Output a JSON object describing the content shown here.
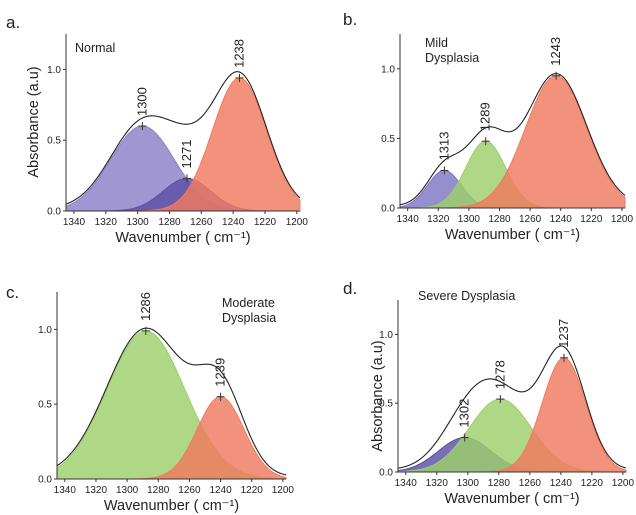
{
  "chart_data": [
    {
      "type": "area",
      "panel_label": "a.",
      "annotation": [
        "Normal"
      ],
      "xlabel": "Wavenumber ( cm⁻¹)",
      "ylabel": "Absorbance (a.u)",
      "xlim": [
        1345,
        1198
      ],
      "ylim": [
        0,
        1.25
      ],
      "x_ticks": [
        1340,
        1320,
        1300,
        1280,
        1260,
        1240,
        1220,
        1200
      ],
      "y_ticks": [
        0.0,
        0.5,
        1.0
      ],
      "series": [
        {
          "peak_label": "1300",
          "center": 1297,
          "amplitude": 0.6,
          "sigma": 20,
          "color": "#8b80c8"
        },
        {
          "peak_label": "1271",
          "center": 1269,
          "amplitude": 0.23,
          "sigma": 15,
          "color": "#5b4fa5"
        },
        {
          "peak_label": "1238",
          "center": 1236,
          "amplitude": 0.94,
          "sigma": 17,
          "color": "#f07a5f"
        }
      ]
    },
    {
      "type": "area",
      "panel_label": "b.",
      "annotation": [
        "Mild",
        "Dysplasia"
      ],
      "xlabel": "Wavenumber ( cm⁻¹)",
      "ylabel": "",
      "xlim": [
        1345,
        1198
      ],
      "ylim": [
        0,
        1.25
      ],
      "x_ticks": [
        1340,
        1320,
        1300,
        1280,
        1260,
        1240,
        1220,
        1200
      ],
      "y_ticks": [
        0.0,
        0.5,
        1.0
      ],
      "series": [
        {
          "peak_label": "1313",
          "center": 1316,
          "amplitude": 0.27,
          "sigma": 11,
          "color": "#7e76c2"
        },
        {
          "peak_label": "1289",
          "center": 1289,
          "amplitude": 0.48,
          "sigma": 13,
          "color": "#9ccf6a"
        },
        {
          "peak_label": "1243",
          "center": 1243,
          "amplitude": 0.95,
          "sigma": 20,
          "color": "#f07a5f"
        }
      ]
    },
    {
      "type": "area",
      "panel_label": "c.",
      "annotation": [
        "Moderate",
        "Dysplasia"
      ],
      "xlabel": "Wavenumber ( cm⁻¹)",
      "ylabel": "",
      "xlim": [
        1345,
        1198
      ],
      "ylim": [
        0,
        1.25
      ],
      "x_ticks": [
        1340,
        1320,
        1300,
        1280,
        1260,
        1240,
        1220,
        1200
      ],
      "y_ticks": [
        0.0,
        0.5,
        1.0
      ],
      "series": [
        {
          "peak_label": "1286",
          "center": 1288,
          "amplitude": 0.99,
          "sigma": 25,
          "color": "#9ccf6a"
        },
        {
          "peak_label": "1239",
          "center": 1240,
          "amplitude": 0.55,
          "sigma": 15,
          "color": "#f07a5f"
        }
      ]
    },
    {
      "type": "area",
      "panel_label": "d.",
      "annotation": [
        "Severe Dysplasia"
      ],
      "xlabel": "Wavenumber ( cm⁻¹)",
      "ylabel": "Absorbance (a.u)",
      "xlim": [
        1345,
        1198
      ],
      "ylim": [
        0,
        1.25
      ],
      "x_ticks": [
        1340,
        1320,
        1300,
        1280,
        1260,
        1240,
        1220,
        1200
      ],
      "y_ticks": [
        0.0,
        0.5,
        1.0
      ],
      "series": [
        {
          "peak_label": "1302",
          "center": 1302,
          "amplitude": 0.25,
          "sigma": 17,
          "color": "#5b4fa5"
        },
        {
          "peak_label": "1278",
          "center": 1279,
          "amplitude": 0.53,
          "sigma": 20,
          "color": "#9ccf6a"
        },
        {
          "peak_label": "1237",
          "center": 1238,
          "amplitude": 0.83,
          "sigma": 14,
          "color": "#f07a5f"
        }
      ]
    }
  ]
}
